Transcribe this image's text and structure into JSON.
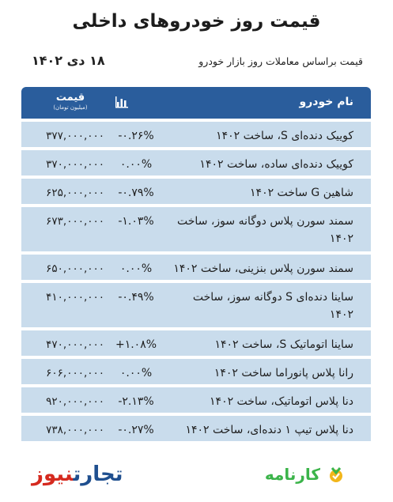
{
  "title": "قیمت روز خودروهای داخلی",
  "subtitle": "قیمت براساس معاملات روز بازار خودرو",
  "date": "۱۸ دی ۱۴۰۲",
  "table": {
    "header": {
      "name": "نام خودرو",
      "change_icon": "bar-chart-icon",
      "price": "قیمت",
      "price_unit": "(میلیون تومان)"
    },
    "rows": [
      {
        "name": "کوییک دنده‌ای S، ساخت ۱۴۰۲",
        "change": "-۰.۲۶%",
        "price": "۳۷۷,۰۰۰,۰۰۰"
      },
      {
        "name": "کوییک دنده‌ای ساده، ساخت ۱۴۰۲",
        "change": "۰.۰۰%",
        "price": "۳۷۰,۰۰۰,۰۰۰"
      },
      {
        "name": "شاهین G ساخت ۱۴۰۲",
        "change": "-۰.۷۹%",
        "price": "۶۲۵,۰۰۰,۰۰۰"
      },
      {
        "name": "سمند سورن پلاس دوگانه سوز، ساخت ۱۴۰۲",
        "change": "-۱.۰۳%",
        "price": "۶۷۳,۰۰۰,۰۰۰"
      },
      {
        "name": "سمند سورن پلاس بنزینی، ساخت ۱۴۰۲",
        "change": "۰.۰۰%",
        "price": "۶۵۰,۰۰۰,۰۰۰"
      },
      {
        "name": "ساینا دنده‌ای S دوگانه سوز، ساخت ۱۴۰۲",
        "change": "-۰.۴۹%",
        "price": "۴۱۰,۰۰۰,۰۰۰"
      },
      {
        "name": "ساینا اتوماتیک S، ساخت ۱۴۰۲",
        "change": "+۱.۰۸%",
        "price": "۴۷۰,۰۰۰,۰۰۰"
      },
      {
        "name": "رانا پلاس پانوراما ساخت ۱۴۰۲",
        "change": "۰.۰۰%",
        "price": "۶۰۶,۰۰۰,۰۰۰"
      },
      {
        "name": "دنا پلاس اتوماتیک، ساخت ۱۴۰۲",
        "change": "-۲.۱۳%",
        "price": "۹۲۰,۰۰۰,۰۰۰"
      },
      {
        "name": "دنا پلاس تیپ ۱ دنده‌ای، ساخت ۱۴۰۲",
        "change": "-۰.۲۷%",
        "price": "۷۳۸,۰۰۰,۰۰۰"
      }
    ]
  },
  "footer": {
    "left_logo_part1": "تجارت",
    "left_logo_part2": "نیوز",
    "right_logo": "کارنامه"
  },
  "colors": {
    "header_bg": "#2a5d9c",
    "row_bg": "#c9dcec",
    "brand_red": "#d52a1f",
    "brand_green": "#3bb44a"
  }
}
